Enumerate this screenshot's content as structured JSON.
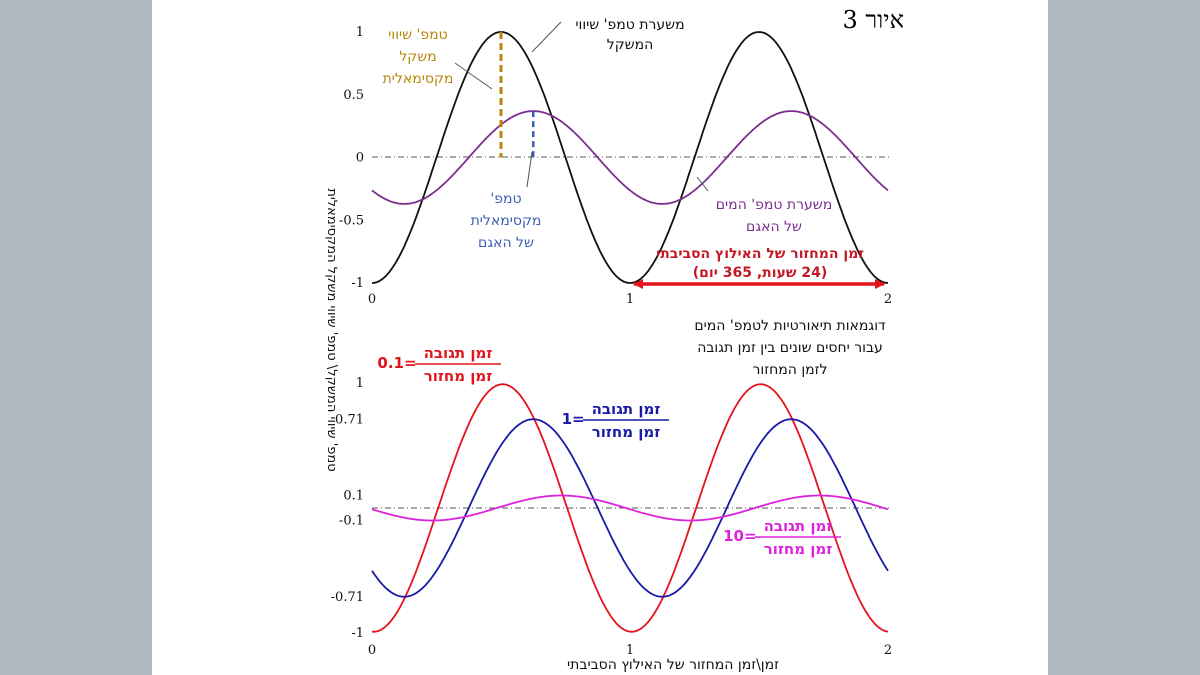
{
  "figure": {
    "title": "איור 3",
    "y_axis_label": "טמפ' שיווי המשקל\\ טמפ' שיווי משקל המקסימאלית",
    "x_axis_label": "זמן\\זמן המחזור של האילוץ הסביבתי"
  },
  "colors": {
    "background": "#b0b8c2",
    "black": "#111111",
    "purple": "#7a2f8f",
    "gold": "#b8860b",
    "blue_dash": "#3a5fb5",
    "red": "#e3141c",
    "dark_red": "#c21a24",
    "navy": "#1a1aa8",
    "magenta": "#dd22dd"
  },
  "annotations": {
    "top": {
      "equilibrium_curve": [
        "משערת טמפ' שיווי",
        "המשקל"
      ],
      "max_equilibrium": [
        "טמפ' שיווי",
        "משקל",
        "מקסימאלית"
      ],
      "max_lake": [
        "טמפ'",
        "מקסימאלית",
        "של האגם"
      ],
      "lake_curve": [
        "משערת טמפ' המים",
        "של האגם"
      ],
      "period": [
        "זמן המחזור של האילוץ הסביבתי",
        "(24 שעות, 365 יום)"
      ]
    },
    "bottom": {
      "caption": [
        "דוגמאות תיאורטיות לטמפ' המים",
        "עבור יחסים שונים בין זמן תגובה",
        "לזמן המחזור"
      ],
      "ratio_numerator": "זמן תגובה",
      "ratio_denominator": "זמן מחזור",
      "red_value": "0.1",
      "blue_value": "1",
      "magenta_value": "10"
    }
  },
  "chart_data": [
    {
      "type": "line",
      "title": "",
      "xlabel": "",
      "ylabel": "טמפ' שיווי המשקל\\ טמפ' שיווי משקל המקסימאלית",
      "xlim": [
        0,
        2
      ],
      "ylim": [
        -1,
        1
      ],
      "xticks": [
        "0",
        "1",
        "2"
      ],
      "yticks": [
        "1",
        "0.5",
        "0",
        "-0.5",
        "-1"
      ],
      "reference_line": 0,
      "markers": {
        "equilibrium_peak_x": 0.5,
        "lake_peak_x": 0.625,
        "period_arrow": [
          1,
          2
        ]
      },
      "series": [
        {
          "name": "משערת טמפ' שיווי המשקל",
          "color": "#111111",
          "formula": "sin(2πt − π/2)",
          "amplitude": 1,
          "phase_lag": 0,
          "x": [
            0,
            0.25,
            0.5,
            0.75,
            1,
            1.25,
            1.5,
            1.75,
            2
          ],
          "y": [
            -1,
            0,
            1,
            0,
            -1,
            0,
            1,
            0,
            -1
          ]
        },
        {
          "name": "משערת טמפ' המים של האגם",
          "color": "#7a2f8f",
          "formula": "0.37·sin(2πt − π/2 − 0.785)",
          "amplitude": 0.37,
          "phase_lag": 0.785,
          "x": [
            0,
            0.125,
            0.375,
            0.625,
            0.875,
            1.125,
            1.375,
            1.625,
            1.875,
            2
          ],
          "y": [
            -0.26,
            -0.37,
            0,
            0.37,
            0,
            -0.37,
            0,
            0.37,
            0,
            -0.26
          ]
        }
      ]
    },
    {
      "type": "line",
      "title": "",
      "xlabel": "זמן\\זמן המחזור של האילוץ הסביבתי",
      "ylabel": "",
      "xlim": [
        0,
        2
      ],
      "ylim": [
        -1,
        1
      ],
      "xticks": [
        "0",
        "1",
        "2"
      ],
      "yticks": [
        "1",
        "0.71",
        "0.1",
        "-0.1",
        "-0.71",
        "-1"
      ],
      "ytick_values": [
        1,
        0.71,
        0.1,
        -0.1,
        -0.71,
        -1
      ],
      "reference_line": 0,
      "series": [
        {
          "name": "זמן תגובה/זמן מחזור = 0.1",
          "color": "#e3141c",
          "amplitude": 0.99,
          "phase_lag": 0.04,
          "x": [
            0,
            0.5,
            1,
            1.5,
            2
          ],
          "y": [
            -0.99,
            0.99,
            -0.99,
            0.99,
            -0.99
          ]
        },
        {
          "name": "זמן תגובה/זמן מחזור = 1",
          "color": "#1a1aa8",
          "amplitude": 0.71,
          "phase_lag": 0.785,
          "x": [
            0,
            0.125,
            0.625,
            1.125,
            1.625,
            2
          ],
          "y": [
            -0.5,
            -0.71,
            0.71,
            -0.71,
            0.71,
            -0.5
          ]
        },
        {
          "name": "זמן תגובה/זמן מחזור = 10",
          "color": "#dd22dd",
          "amplitude": 0.1,
          "phase_lag": 1.47,
          "x": [
            0,
            0.234,
            0.734,
            1.234,
            1.734,
            2
          ],
          "y": [
            0,
            -0.1,
            0.1,
            -0.1,
            0.1,
            -0.01
          ]
        }
      ]
    }
  ]
}
